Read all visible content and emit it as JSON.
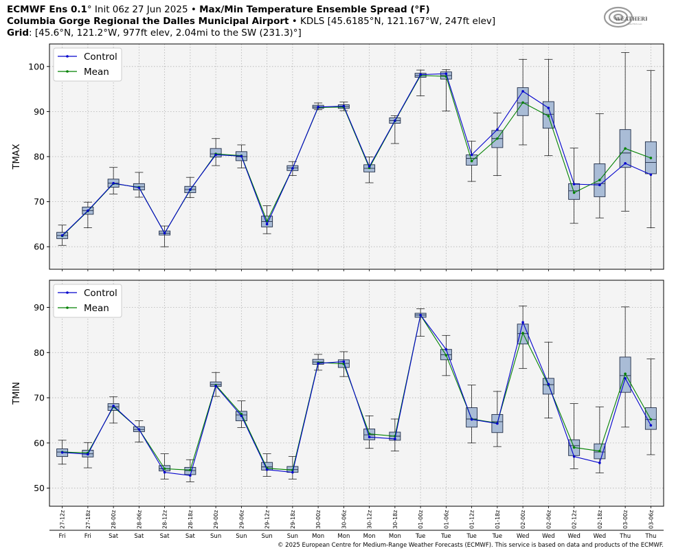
{
  "header": {
    "model_bold": "ECMWF Ens 0.1",
    "model_deg": "°",
    "init": " Init 06z 27 Jun 2025",
    "bullet": " • ",
    "product": "Max/Min Temperature Ensemble Spread (°F)",
    "station_bold": "Columbia Gorge Regional the Dalles Municipal Airport",
    "station_rest": " • KDLS [45.6185°N, 121.167°W, 247ft elev]",
    "grid_bold": "Grid",
    "grid_rest": ": [45.6°N, 121.2°W, 977ft elev, 2.04mi to the SW (231.3)°]"
  },
  "logo": {
    "text": "WEATHERBELL",
    "sub": "ANALYTICS LLC"
  },
  "copyright": "© 2025 European Centre for Medium-Range Weather Forecasts (ECMWF). This service is based on data and products of the ECMWF.",
  "colors": {
    "control": "#0000cc",
    "mean": "#008000",
    "box_fill": "#a9bcd6",
    "box_edge": "#1e2a44",
    "plot_bg": "#f4f4f4",
    "grid": "#b0b0b0"
  },
  "chart_data": [
    {
      "type": "box",
      "ylabel": "TMAX",
      "ylim": [
        55,
        105
      ],
      "yticks": [
        60,
        70,
        80,
        90,
        100
      ],
      "grid": true,
      "legend": {
        "placement": "top-left",
        "entries": [
          "Control",
          "Mean"
        ]
      },
      "x": [
        "27-12z",
        "27-18z",
        "28-00z",
        "28-06z",
        "28-12z",
        "28-18z",
        "29-00z",
        "29-06z",
        "29-12z",
        "29-18z",
        "30-00z",
        "30-06z",
        "30-12z",
        "30-18z",
        "01-00z",
        "01-06z",
        "01-12z",
        "01-18z",
        "02-00z",
        "02-06z",
        "02-12z",
        "02-18z",
        "03-00z",
        "03-06z"
      ],
      "days": [
        "Fri",
        "Fri",
        "Sat",
        "Sat",
        "Sat",
        "Sat",
        "Sun",
        "Sun",
        "Sun",
        "Sun",
        "Mon",
        "Mon",
        "Mon",
        "Mon",
        "Tue",
        "Tue",
        "Tue",
        "Tue",
        "Wed",
        "Wed",
        "Wed",
        "Wed",
        "Thu",
        "Thu"
      ],
      "whisker_low": [
        60.3,
        64.2,
        71.7,
        71.0,
        60.0,
        70.9,
        78.0,
        77.5,
        62.9,
        75.8,
        90.4,
        90.2,
        74.2,
        82.9,
        93.5,
        90.1,
        74.5,
        75.8,
        82.6,
        80.2,
        65.2,
        66.4,
        67.9,
        64.2
      ],
      "q1": [
        61.8,
        67.2,
        73.2,
        72.6,
        62.6,
        72.0,
        79.9,
        79.1,
        64.4,
        76.9,
        90.7,
        90.7,
        76.6,
        87.4,
        97.6,
        97.2,
        78.1,
        82.0,
        89.1,
        86.3,
        70.5,
        71.1,
        77.6,
        76.2
      ],
      "median": [
        62.5,
        68.0,
        74.1,
        73.3,
        63.0,
        72.7,
        80.6,
        80.0,
        65.6,
        77.5,
        91.0,
        91.1,
        77.4,
        88.0,
        98.0,
        98.0,
        79.6,
        84.0,
        91.9,
        89.4,
        72.4,
        74.0,
        80.8,
        78.7
      ],
      "q3": [
        63.2,
        68.8,
        75.0,
        74.0,
        63.5,
        73.4,
        81.8,
        81.1,
        66.8,
        78.0,
        91.4,
        91.5,
        78.2,
        88.6,
        98.5,
        98.8,
        80.4,
        85.8,
        95.3,
        92.2,
        74.0,
        78.4,
        86.0,
        83.3
      ],
      "whisker_high": [
        64.8,
        69.9,
        77.6,
        76.5,
        64.6,
        75.4,
        84.0,
        82.6,
        69.1,
        78.9,
        91.9,
        92.1,
        79.9,
        89.1,
        99.2,
        99.3,
        83.4,
        89.7,
        101.6,
        101.6,
        81.9,
        89.5,
        103.1,
        99.1
      ],
      "series": [
        {
          "name": "Control",
          "values": [
            62.5,
            68.0,
            74.1,
            73.1,
            63.0,
            72.7,
            80.4,
            80.1,
            65.0,
            77.4,
            91.0,
            91.2,
            77.8,
            88.0,
            98.2,
            98.4,
            80.4,
            86.0,
            94.5,
            90.8,
            73.9,
            73.7,
            78.5,
            76.0
          ]
        },
        {
          "name": "Mean",
          "values": [
            62.4,
            67.9,
            74.0,
            73.2,
            63.0,
            72.6,
            80.6,
            80.2,
            65.7,
            77.4,
            90.9,
            91.0,
            77.5,
            87.9,
            98.0,
            97.8,
            79.0,
            84.0,
            92.0,
            89.0,
            72.0,
            74.8,
            81.8,
            79.7
          ]
        }
      ]
    },
    {
      "type": "box",
      "ylabel": "TMIN",
      "ylim": [
        46,
        96
      ],
      "yticks": [
        50,
        60,
        70,
        80,
        90
      ],
      "grid": true,
      "legend": {
        "placement": "top-left",
        "entries": [
          "Control",
          "Mean"
        ]
      },
      "x": [
        "27-12z",
        "27-18z",
        "28-00z",
        "28-06z",
        "28-12z",
        "28-18z",
        "29-00z",
        "29-06z",
        "29-12z",
        "29-18z",
        "30-00z",
        "30-06z",
        "30-12z",
        "30-18z",
        "01-00z",
        "01-06z",
        "01-12z",
        "01-18z",
        "02-00z",
        "02-06z",
        "02-12z",
        "02-18z",
        "03-00z",
        "03-06z"
      ],
      "days": [
        "Fri",
        "Fri",
        "Sat",
        "Sat",
        "Sat",
        "Sat",
        "Sun",
        "Sun",
        "Sun",
        "Sun",
        "Mon",
        "Mon",
        "Mon",
        "Mon",
        "Tue",
        "Tue",
        "Tue",
        "Tue",
        "Wed",
        "Wed",
        "Wed",
        "Wed",
        "Thu",
        "Thu"
      ],
      "whisker_low": [
        55.3,
        54.5,
        64.4,
        60.2,
        52.0,
        51.4,
        70.3,
        63.4,
        52.6,
        52.0,
        76.1,
        74.7,
        58.8,
        58.2,
        83.6,
        74.9,
        60.0,
        59.2,
        76.5,
        65.5,
        54.3,
        53.4,
        63.5,
        57.4
      ],
      "q1": [
        57.0,
        56.9,
        67.2,
        62.5,
        53.8,
        53.0,
        72.5,
        64.9,
        54.0,
        53.5,
        77.4,
        76.7,
        60.7,
        60.6,
        87.8,
        78.4,
        63.5,
        62.3,
        81.9,
        70.8,
        57.2,
        56.5,
        71.2,
        63.0
      ],
      "median": [
        58.0,
        57.6,
        68.0,
        63.0,
        54.3,
        53.9,
        72.9,
        66.2,
        54.7,
        54.1,
        77.9,
        77.6,
        61.8,
        61.5,
        88.3,
        79.5,
        65.3,
        64.7,
        84.2,
        72.9,
        59.4,
        58.0,
        74.9,
        65.2
      ],
      "q3": [
        58.7,
        58.4,
        68.7,
        63.6,
        55.0,
        54.6,
        73.5,
        67.0,
        55.7,
        54.8,
        78.5,
        78.4,
        63.1,
        62.4,
        88.7,
        80.7,
        67.8,
        66.3,
        86.3,
        74.3,
        60.7,
        59.8,
        79.0,
        67.8
      ],
      "whisker_high": [
        60.6,
        60.1,
        70.2,
        64.9,
        57.6,
        56.3,
        75.6,
        69.3,
        57.6,
        57.0,
        79.6,
        80.2,
        66.0,
        65.3,
        89.7,
        83.8,
        72.8,
        71.4,
        90.3,
        82.3,
        68.7,
        68.0,
        90.1,
        78.6
      ],
      "series": [
        {
          "name": "Control",
          "values": [
            57.9,
            57.5,
            68.2,
            63.0,
            53.5,
            52.8,
            72.6,
            66.0,
            54.1,
            53.5,
            77.6,
            78.0,
            61.3,
            60.9,
            88.3,
            80.7,
            65.2,
            64.3,
            86.7,
            73.0,
            57.0,
            55.6,
            74.3,
            63.9
          ]
        },
        {
          "name": "Mean",
          "values": [
            58.0,
            57.8,
            68.0,
            63.0,
            54.3,
            54.0,
            72.8,
            66.4,
            54.4,
            54.0,
            77.8,
            77.5,
            62.0,
            61.5,
            88.3,
            79.4,
            65.3,
            64.4,
            84.3,
            72.8,
            59.0,
            58.2,
            75.3,
            65.2
          ]
        }
      ]
    }
  ]
}
